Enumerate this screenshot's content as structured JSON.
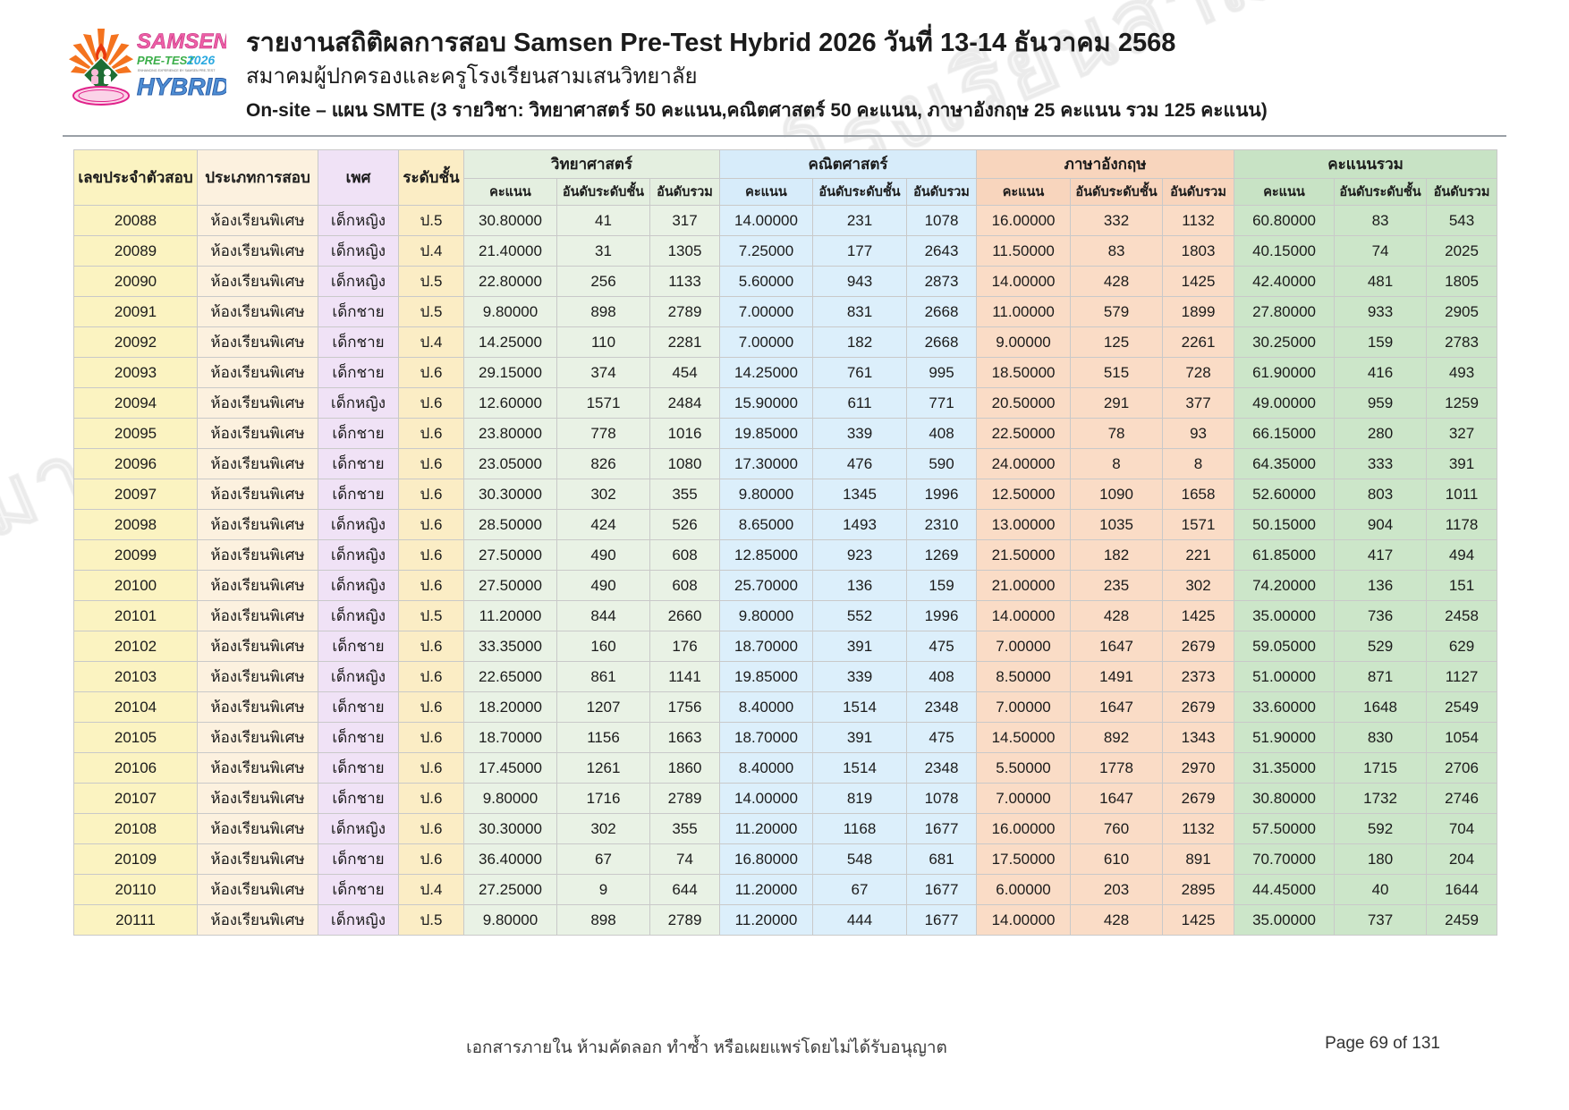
{
  "header": {
    "title": "รายงานสถิติผลการสอบ Samsen Pre-Test Hybrid 2026 วันที่ 13-14 ธันวาคม 2568",
    "subtitle": "สมาคมผู้ปกครองและครูโรงเรียนสามเสนวิทยาลัย",
    "plan_line": "On-site – แผน SMTE (3 รายวิชา: วิทยาศาสตร์ 50 คะแนน,คณิตศาสตร์ 50 คะแนน,  ภาษาอังกฤษ 25 คะแนน รวม 125 คะแนน)",
    "logo": {
      "line1": "SAMSEN",
      "line2": "PRE-TEST",
      "line2b": "2026",
      "line3": "ENHANCING EXPERIENCE BY SAMSEN PRE-TEST",
      "line4": "HYBRID"
    }
  },
  "watermark": {
    "text": "สมาคมผู้ปกครองและครูโรงเรียนสามเสนวิทยาลัย",
    "ghost1": "SAMSEN",
    "ghost2": "PRE-TEST 2026",
    "ghost3": "HYBRID"
  },
  "table": {
    "columns": {
      "id": "เลขประจำตัวสอบ",
      "exam_type": "ประเภทการสอบ",
      "gender": "เพศ",
      "grade": "ระดับชั้น",
      "groups": [
        {
          "label": "วิทยาศาสตร์"
        },
        {
          "label": "คณิตศาสตร์"
        },
        {
          "label": "ภาษาอังกฤษ"
        },
        {
          "label": "คะแนนรวม"
        }
      ],
      "sub": [
        "คะแนน",
        "อันดับระดับชั้น",
        "อันดับรวม"
      ]
    },
    "rows": [
      [
        "20088",
        "ห้องเรียนพิเศษ",
        "เด็กหญิง",
        "ป.5",
        "30.80000",
        "41",
        "317",
        "14.00000",
        "231",
        "1078",
        "16.00000",
        "332",
        "1132",
        "60.80000",
        "83",
        "543"
      ],
      [
        "20089",
        "ห้องเรียนพิเศษ",
        "เด็กหญิง",
        "ป.4",
        "21.40000",
        "31",
        "1305",
        "7.25000",
        "177",
        "2643",
        "11.50000",
        "83",
        "1803",
        "40.15000",
        "74",
        "2025"
      ],
      [
        "20090",
        "ห้องเรียนพิเศษ",
        "เด็กหญิง",
        "ป.5",
        "22.80000",
        "256",
        "1133",
        "5.60000",
        "943",
        "2873",
        "14.00000",
        "428",
        "1425",
        "42.40000",
        "481",
        "1805"
      ],
      [
        "20091",
        "ห้องเรียนพิเศษ",
        "เด็กชาย",
        "ป.5",
        "9.80000",
        "898",
        "2789",
        "7.00000",
        "831",
        "2668",
        "11.00000",
        "579",
        "1899",
        "27.80000",
        "933",
        "2905"
      ],
      [
        "20092",
        "ห้องเรียนพิเศษ",
        "เด็กชาย",
        "ป.4",
        "14.25000",
        "110",
        "2281",
        "7.00000",
        "182",
        "2668",
        "9.00000",
        "125",
        "2261",
        "30.25000",
        "159",
        "2783"
      ],
      [
        "20093",
        "ห้องเรียนพิเศษ",
        "เด็กชาย",
        "ป.6",
        "29.15000",
        "374",
        "454",
        "14.25000",
        "761",
        "995",
        "18.50000",
        "515",
        "728",
        "61.90000",
        "416",
        "493"
      ],
      [
        "20094",
        "ห้องเรียนพิเศษ",
        "เด็กหญิง",
        "ป.6",
        "12.60000",
        "1571",
        "2484",
        "15.90000",
        "611",
        "771",
        "20.50000",
        "291",
        "377",
        "49.00000",
        "959",
        "1259"
      ],
      [
        "20095",
        "ห้องเรียนพิเศษ",
        "เด็กชาย",
        "ป.6",
        "23.80000",
        "778",
        "1016",
        "19.85000",
        "339",
        "408",
        "22.50000",
        "78",
        "93",
        "66.15000",
        "280",
        "327"
      ],
      [
        "20096",
        "ห้องเรียนพิเศษ",
        "เด็กชาย",
        "ป.6",
        "23.05000",
        "826",
        "1080",
        "17.30000",
        "476",
        "590",
        "24.00000",
        "8",
        "8",
        "64.35000",
        "333",
        "391"
      ],
      [
        "20097",
        "ห้องเรียนพิเศษ",
        "เด็กชาย",
        "ป.6",
        "30.30000",
        "302",
        "355",
        "9.80000",
        "1345",
        "1996",
        "12.50000",
        "1090",
        "1658",
        "52.60000",
        "803",
        "1011"
      ],
      [
        "20098",
        "ห้องเรียนพิเศษ",
        "เด็กหญิง",
        "ป.6",
        "28.50000",
        "424",
        "526",
        "8.65000",
        "1493",
        "2310",
        "13.00000",
        "1035",
        "1571",
        "50.15000",
        "904",
        "1178"
      ],
      [
        "20099",
        "ห้องเรียนพิเศษ",
        "เด็กหญิง",
        "ป.6",
        "27.50000",
        "490",
        "608",
        "12.85000",
        "923",
        "1269",
        "21.50000",
        "182",
        "221",
        "61.85000",
        "417",
        "494"
      ],
      [
        "20100",
        "ห้องเรียนพิเศษ",
        "เด็กหญิง",
        "ป.6",
        "27.50000",
        "490",
        "608",
        "25.70000",
        "136",
        "159",
        "21.00000",
        "235",
        "302",
        "74.20000",
        "136",
        "151"
      ],
      [
        "20101",
        "ห้องเรียนพิเศษ",
        "เด็กหญิง",
        "ป.5",
        "11.20000",
        "844",
        "2660",
        "9.80000",
        "552",
        "1996",
        "14.00000",
        "428",
        "1425",
        "35.00000",
        "736",
        "2458"
      ],
      [
        "20102",
        "ห้องเรียนพิเศษ",
        "เด็กชาย",
        "ป.6",
        "33.35000",
        "160",
        "176",
        "18.70000",
        "391",
        "475",
        "7.00000",
        "1647",
        "2679",
        "59.05000",
        "529",
        "629"
      ],
      [
        "20103",
        "ห้องเรียนพิเศษ",
        "เด็กหญิง",
        "ป.6",
        "22.65000",
        "861",
        "1141",
        "19.85000",
        "339",
        "408",
        "8.50000",
        "1491",
        "2373",
        "51.00000",
        "871",
        "1127"
      ],
      [
        "20104",
        "ห้องเรียนพิเศษ",
        "เด็กชาย",
        "ป.6",
        "18.20000",
        "1207",
        "1756",
        "8.40000",
        "1514",
        "2348",
        "7.00000",
        "1647",
        "2679",
        "33.60000",
        "1648",
        "2549"
      ],
      [
        "20105",
        "ห้องเรียนพิเศษ",
        "เด็กชาย",
        "ป.6",
        "18.70000",
        "1156",
        "1663",
        "18.70000",
        "391",
        "475",
        "14.50000",
        "892",
        "1343",
        "51.90000",
        "830",
        "1054"
      ],
      [
        "20106",
        "ห้องเรียนพิเศษ",
        "เด็กชาย",
        "ป.6",
        "17.45000",
        "1261",
        "1860",
        "8.40000",
        "1514",
        "2348",
        "5.50000",
        "1778",
        "2970",
        "31.35000",
        "1715",
        "2706"
      ],
      [
        "20107",
        "ห้องเรียนพิเศษ",
        "เด็กชาย",
        "ป.6",
        "9.80000",
        "1716",
        "2789",
        "14.00000",
        "819",
        "1078",
        "7.00000",
        "1647",
        "2679",
        "30.80000",
        "1732",
        "2746"
      ],
      [
        "20108",
        "ห้องเรียนพิเศษ",
        "เด็กหญิง",
        "ป.6",
        "30.30000",
        "302",
        "355",
        "11.20000",
        "1168",
        "1677",
        "16.00000",
        "760",
        "1132",
        "57.50000",
        "592",
        "704"
      ],
      [
        "20109",
        "ห้องเรียนพิเศษ",
        "เด็กชาย",
        "ป.6",
        "36.40000",
        "67",
        "74",
        "16.80000",
        "548",
        "681",
        "17.50000",
        "610",
        "891",
        "70.70000",
        "180",
        "204"
      ],
      [
        "20110",
        "ห้องเรียนพิเศษ",
        "เด็กชาย",
        "ป.4",
        "27.25000",
        "9",
        "644",
        "11.20000",
        "67",
        "1677",
        "6.00000",
        "203",
        "2895",
        "44.45000",
        "40",
        "1644"
      ],
      [
        "20111",
        "ห้องเรียนพิเศษ",
        "เด็กหญิง",
        "ป.5",
        "9.80000",
        "898",
        "2789",
        "11.20000",
        "444",
        "1677",
        "14.00000",
        "428",
        "1425",
        "35.00000",
        "737",
        "2459"
      ]
    ]
  },
  "footer": {
    "notice": "เอกสารภายใน ห้ามคัดลอก ทำซ้ำ หรือเผยแพร่โดยไม่ได้รับอนุญาต",
    "page": "Page 69 of 131"
  },
  "colors": {
    "id_col": "#fbf3c1",
    "type_col": "#fcf1df",
    "gender_col": "#f0e2f6",
    "grade_col": "#fbedc5",
    "science": "#e9f2e5",
    "math": "#dceffb",
    "english": "#fadcc6",
    "total": "#cce6c9",
    "logo_pink": "#ee5fa7",
    "logo_green": "#3bae49",
    "logo_blue": "#4f8fd5",
    "logo_orange": "#f4731f"
  }
}
